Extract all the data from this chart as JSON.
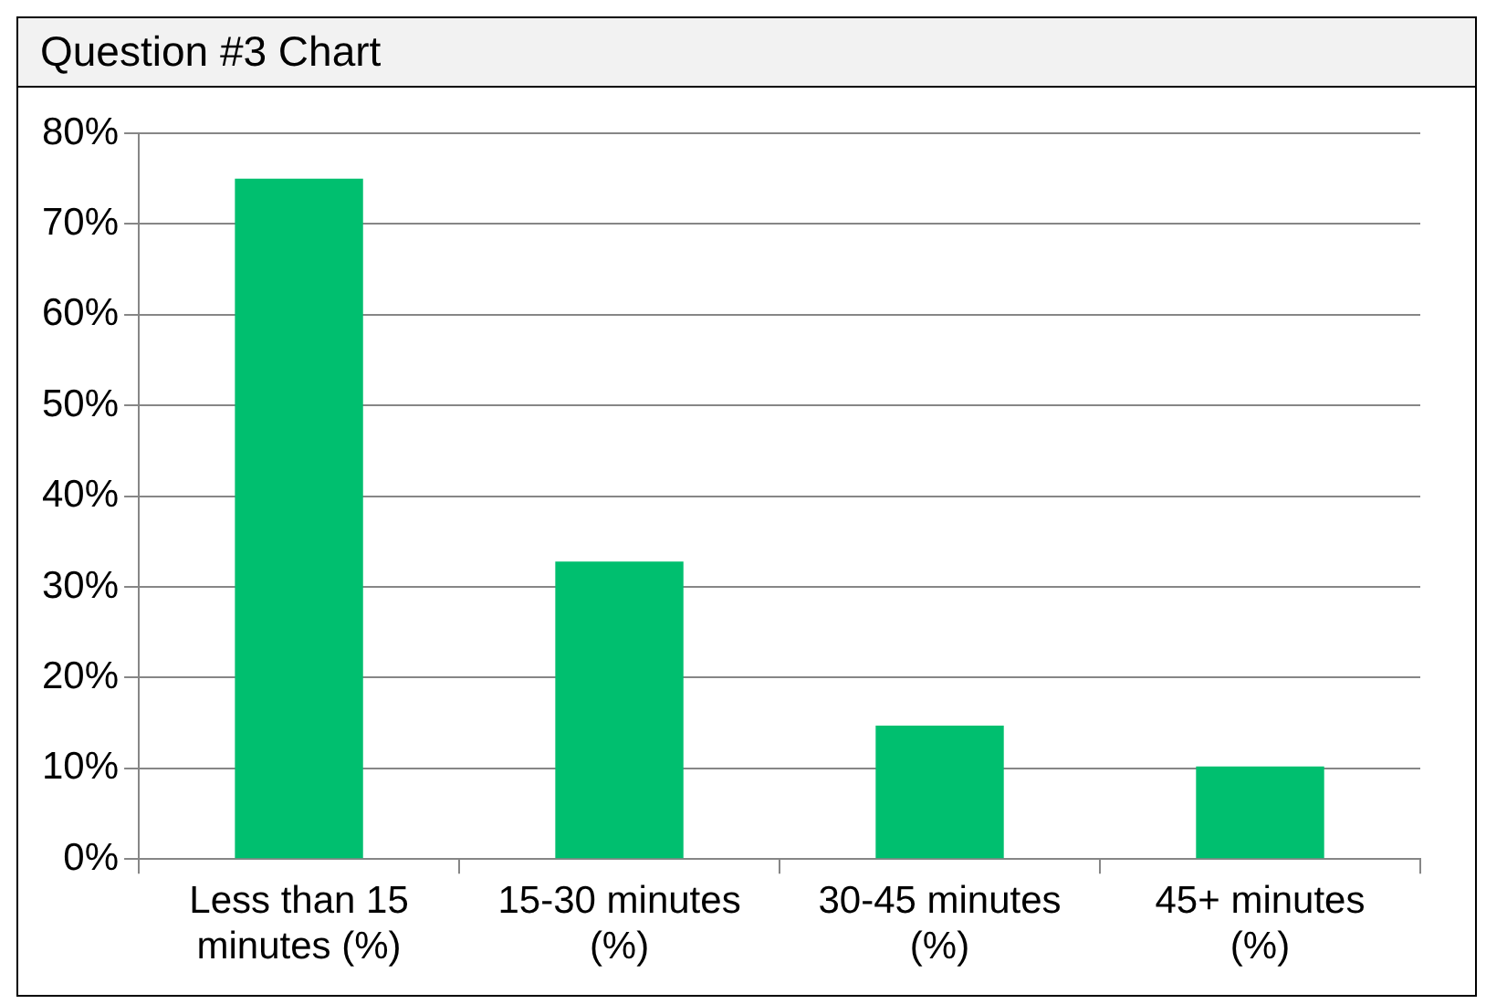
{
  "chart_data": {
    "type": "bar",
    "title": "Question #3 Chart",
    "categories": [
      "Less than 15 minutes (%)",
      "15-30 minutes (%)",
      "30-45 minutes (%)",
      "45+ minutes (%)"
    ],
    "values": [
      75,
      32.8,
      14.7,
      10.2
    ],
    "color": "#00bf6f",
    "ylim": [
      0,
      80
    ],
    "yticks": [
      {
        "value": 0,
        "label": "0%"
      },
      {
        "value": 10,
        "label": "10%"
      },
      {
        "value": 20,
        "label": "20%"
      },
      {
        "value": 30,
        "label": "30%"
      },
      {
        "value": 40,
        "label": "40%"
      },
      {
        "value": 50,
        "label": "50%"
      },
      {
        "value": 60,
        "label": "60%"
      },
      {
        "value": 70,
        "label": "70%"
      },
      {
        "value": 80,
        "label": "80%"
      }
    ],
    "grid": "y",
    "legend": false
  }
}
